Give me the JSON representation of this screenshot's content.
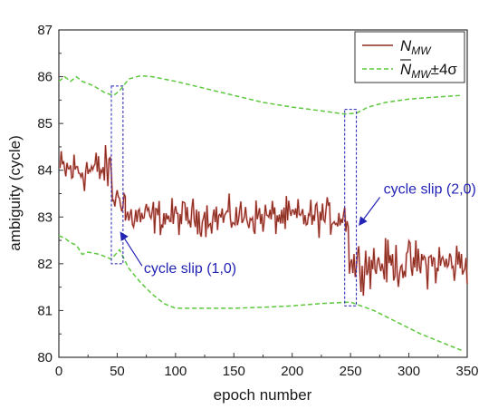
{
  "chart_data": {
    "type": "line",
    "xlabel": "epoch number",
    "ylabel": "ambiguity (cycle)",
    "xlim": [
      0,
      350
    ],
    "ylim": [
      80,
      87
    ],
    "xticks": [
      0,
      50,
      100,
      150,
      200,
      250,
      300,
      350
    ],
    "yticks": [
      80,
      81,
      82,
      83,
      84,
      85,
      86,
      87
    ],
    "grid": false,
    "legend_position": "top-right",
    "series": [
      {
        "name": "N_MW",
        "style": "solid",
        "color": "#8b2e1e",
        "segments": [
          {
            "x_range": [
              1,
              45
            ],
            "mean": 84.0,
            "noise_amplitude": 0.45
          },
          {
            "x_range": [
              46,
              57
            ],
            "mean": 83.4,
            "noise_amplitude": 0.3,
            "note": "transition after cycle slip (1,0)"
          },
          {
            "x_range": [
              57,
              248
            ],
            "mean": 83.0,
            "noise_amplitude": 0.35
          },
          {
            "x_range": [
              249,
              350
            ],
            "mean": 82.0,
            "noise_amplitude": 0.45
          }
        ]
      },
      {
        "name": "N_MW ± 4σ (upper bound)",
        "style": "dashed",
        "color": "#5cc83c",
        "points": [
          [
            0,
            85.9
          ],
          [
            5,
            86.0
          ],
          [
            10,
            85.9
          ],
          [
            15,
            86.0
          ],
          [
            20,
            85.9
          ],
          [
            30,
            85.8
          ],
          [
            40,
            85.65
          ],
          [
            47,
            85.6
          ],
          [
            52,
            85.7
          ],
          [
            60,
            85.95
          ],
          [
            70,
            86.02
          ],
          [
            80,
            86.0
          ],
          [
            100,
            85.9
          ],
          [
            125,
            85.75
          ],
          [
            150,
            85.6
          ],
          [
            175,
            85.45
          ],
          [
            200,
            85.35
          ],
          [
            225,
            85.27
          ],
          [
            245,
            85.2
          ],
          [
            255,
            85.22
          ],
          [
            265,
            85.35
          ],
          [
            280,
            85.45
          ],
          [
            300,
            85.52
          ],
          [
            320,
            85.56
          ],
          [
            345,
            85.6
          ]
        ]
      },
      {
        "name": "N_MW ± 4σ (lower bound)",
        "style": "dashed",
        "color": "#5cc83c",
        "points": [
          [
            0,
            82.6
          ],
          [
            5,
            82.55
          ],
          [
            10,
            82.45
          ],
          [
            15,
            82.4
          ],
          [
            20,
            82.2
          ],
          [
            25,
            82.25
          ],
          [
            35,
            82.2
          ],
          [
            45,
            82.1
          ],
          [
            52,
            82.3
          ],
          [
            60,
            81.9
          ],
          [
            70,
            81.6
          ],
          [
            80,
            81.35
          ],
          [
            90,
            81.15
          ],
          [
            100,
            81.05
          ],
          [
            125,
            81.05
          ],
          [
            150,
            81.05
          ],
          [
            175,
            81.07
          ],
          [
            200,
            81.1
          ],
          [
            225,
            81.15
          ],
          [
            250,
            81.18
          ],
          [
            270,
            81.0
          ],
          [
            290,
            80.75
          ],
          [
            310,
            80.5
          ],
          [
            330,
            80.3
          ],
          [
            345,
            80.15
          ]
        ]
      }
    ],
    "legend": [
      {
        "label": "N",
        "sub": "MW",
        "overline": false,
        "suffix": "",
        "style": "solid",
        "color": "#8b2e1e"
      },
      {
        "label": "N",
        "sub": "MW",
        "overline": true,
        "suffix": "±4σ",
        "style": "dashed",
        "color": "#5cc83c"
      }
    ],
    "annotations": [
      {
        "text": "cycle slip (1,0)",
        "box_x": [
          45,
          55
        ],
        "box_y": [
          82.0,
          85.8
        ],
        "color": "#2323b5"
      },
      {
        "text": "cycle slip (2,0)",
        "box_x": [
          245,
          255
        ],
        "box_y": [
          81.1,
          85.3
        ],
        "color": "#2323b5"
      }
    ]
  }
}
